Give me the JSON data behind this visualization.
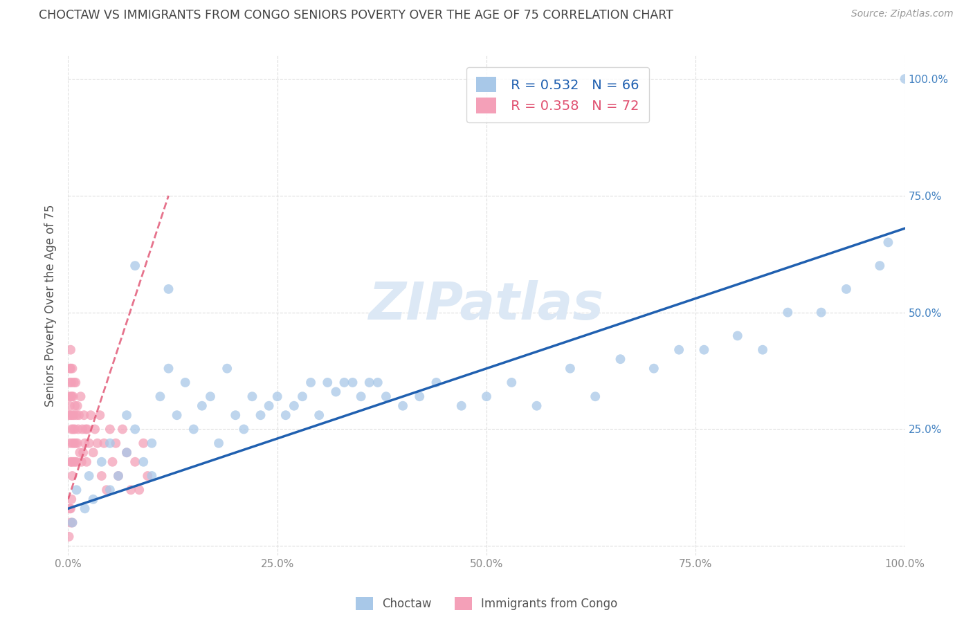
{
  "title": "CHOCTAW VS IMMIGRANTS FROM CONGO SENIORS POVERTY OVER THE AGE OF 75 CORRELATION CHART",
  "source": "Source: ZipAtlas.com",
  "ylabel": "Seniors Poverty Over the Age of 75",
  "xlim": [
    0,
    1.0
  ],
  "ylim": [
    -0.02,
    1.05
  ],
  "xticks": [
    0.0,
    0.25,
    0.5,
    0.75,
    1.0
  ],
  "yticks": [
    0.0,
    0.25,
    0.5,
    0.75,
    1.0
  ],
  "xticklabels": [
    "0.0%",
    "25.0%",
    "50.0%",
    "75.0%",
    "100.0%"
  ],
  "yticklabels": [
    "",
    "25.0%",
    "50.0%",
    "75.0%",
    "100.0%"
  ],
  "legend_labels": [
    "Choctaw",
    "Immigrants from Congo"
  ],
  "blue_R": 0.532,
  "blue_N": 66,
  "pink_R": 0.358,
  "pink_N": 72,
  "blue_color": "#a8c8e8",
  "pink_color": "#f4a0b8",
  "blue_line_color": "#2060b0",
  "pink_line_color": "#e05070",
  "watermark": "ZIPatlas",
  "watermark_color": "#dce8f5",
  "title_color": "#444444",
  "axis_tick_color": "#4080c0",
  "grid_color": "#dddddd",
  "blue_scatter_x": [
    0.005,
    0.01,
    0.02,
    0.025,
    0.03,
    0.04,
    0.05,
    0.05,
    0.06,
    0.07,
    0.07,
    0.08,
    0.09,
    0.1,
    0.1,
    0.11,
    0.12,
    0.13,
    0.14,
    0.15,
    0.16,
    0.17,
    0.18,
    0.19,
    0.2,
    0.21,
    0.22,
    0.23,
    0.24,
    0.25,
    0.26,
    0.27,
    0.28,
    0.29,
    0.3,
    0.31,
    0.32,
    0.33,
    0.34,
    0.35,
    0.36,
    0.37,
    0.38,
    0.4,
    0.42,
    0.44,
    0.47,
    0.5,
    0.53,
    0.56,
    0.6,
    0.63,
    0.66,
    0.7,
    0.73,
    0.76,
    0.8,
    0.83,
    0.86,
    0.9,
    0.93,
    0.97,
    0.98,
    1.0,
    0.08,
    0.12
  ],
  "blue_scatter_y": [
    0.05,
    0.12,
    0.08,
    0.15,
    0.1,
    0.18,
    0.12,
    0.22,
    0.15,
    0.2,
    0.28,
    0.25,
    0.18,
    0.15,
    0.22,
    0.32,
    0.38,
    0.28,
    0.35,
    0.25,
    0.3,
    0.32,
    0.22,
    0.38,
    0.28,
    0.25,
    0.32,
    0.28,
    0.3,
    0.32,
    0.28,
    0.3,
    0.32,
    0.35,
    0.28,
    0.35,
    0.33,
    0.35,
    0.35,
    0.32,
    0.35,
    0.35,
    0.32,
    0.3,
    0.32,
    0.35,
    0.3,
    0.32,
    0.35,
    0.3,
    0.38,
    0.32,
    0.4,
    0.38,
    0.42,
    0.42,
    0.45,
    0.42,
    0.5,
    0.5,
    0.55,
    0.6,
    0.65,
    1.0,
    0.6,
    0.55
  ],
  "pink_scatter_x": [
    0.001,
    0.001,
    0.002,
    0.002,
    0.002,
    0.003,
    0.003,
    0.003,
    0.003,
    0.004,
    0.004,
    0.004,
    0.004,
    0.005,
    0.005,
    0.005,
    0.005,
    0.006,
    0.006,
    0.006,
    0.007,
    0.007,
    0.007,
    0.008,
    0.008,
    0.008,
    0.009,
    0.009,
    0.01,
    0.01,
    0.011,
    0.011,
    0.012,
    0.013,
    0.014,
    0.015,
    0.016,
    0.017,
    0.018,
    0.019,
    0.02,
    0.021,
    0.022,
    0.023,
    0.025,
    0.027,
    0.03,
    0.032,
    0.035,
    0.038,
    0.04,
    0.043,
    0.046,
    0.05,
    0.053,
    0.057,
    0.06,
    0.065,
    0.07,
    0.075,
    0.08,
    0.085,
    0.09,
    0.095,
    0.002,
    0.003,
    0.004,
    0.005,
    0.001,
    0.002,
    0.003,
    0.004
  ],
  "pink_scatter_y": [
    0.28,
    0.32,
    0.35,
    0.3,
    0.22,
    0.38,
    0.28,
    0.18,
    0.42,
    0.32,
    0.25,
    0.18,
    0.35,
    0.28,
    0.22,
    0.38,
    0.15,
    0.32,
    0.25,
    0.18,
    0.35,
    0.28,
    0.22,
    0.3,
    0.25,
    0.18,
    0.35,
    0.22,
    0.28,
    0.18,
    0.3,
    0.22,
    0.25,
    0.28,
    0.2,
    0.32,
    0.18,
    0.25,
    0.2,
    0.28,
    0.22,
    0.25,
    0.18,
    0.25,
    0.22,
    0.28,
    0.2,
    0.25,
    0.22,
    0.28,
    0.15,
    0.22,
    0.12,
    0.25,
    0.18,
    0.22,
    0.15,
    0.25,
    0.2,
    0.12,
    0.18,
    0.12,
    0.22,
    0.15,
    0.08,
    0.05,
    0.1,
    0.05,
    0.02,
    0.38,
    0.08,
    0.32
  ],
  "blue_trend_x": [
    0.0,
    1.0
  ],
  "blue_trend_y": [
    0.08,
    0.68
  ],
  "pink_trend_x": [
    0.0,
    0.12
  ],
  "pink_trend_y": [
    0.1,
    0.75
  ]
}
